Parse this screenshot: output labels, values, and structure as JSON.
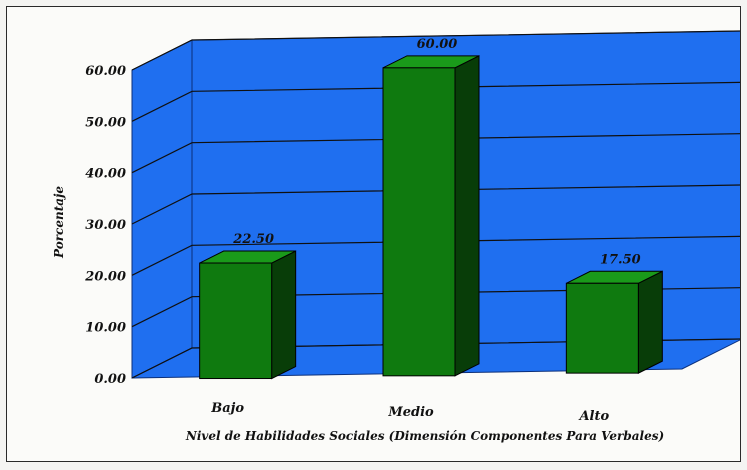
{
  "chart_data": {
    "type": "bar",
    "categories": [
      "Bajo",
      "Medio",
      "Alto"
    ],
    "values": [
      22.5,
      60.0,
      17.5
    ],
    "data_labels": [
      "22.50",
      "60.00",
      "17.50"
    ],
    "ylabel": "Porcentaje",
    "xlabel": "Nivel de Habilidades Sociales (Dimensión Componentes Para Verbales)",
    "ylim": [
      0,
      60
    ],
    "yticks": [
      "0.00",
      "10.00",
      "20.00",
      "30.00",
      "40.00",
      "50.00",
      "60.00"
    ],
    "grid": true,
    "legend": "none",
    "colors": {
      "bar_front": "#0f7a0f",
      "bar_top": "#1a9a1a",
      "bar_side": "#083d08",
      "wall": "#1f6ff0",
      "floor": "#1f6ff0",
      "grid": "#101010"
    }
  }
}
